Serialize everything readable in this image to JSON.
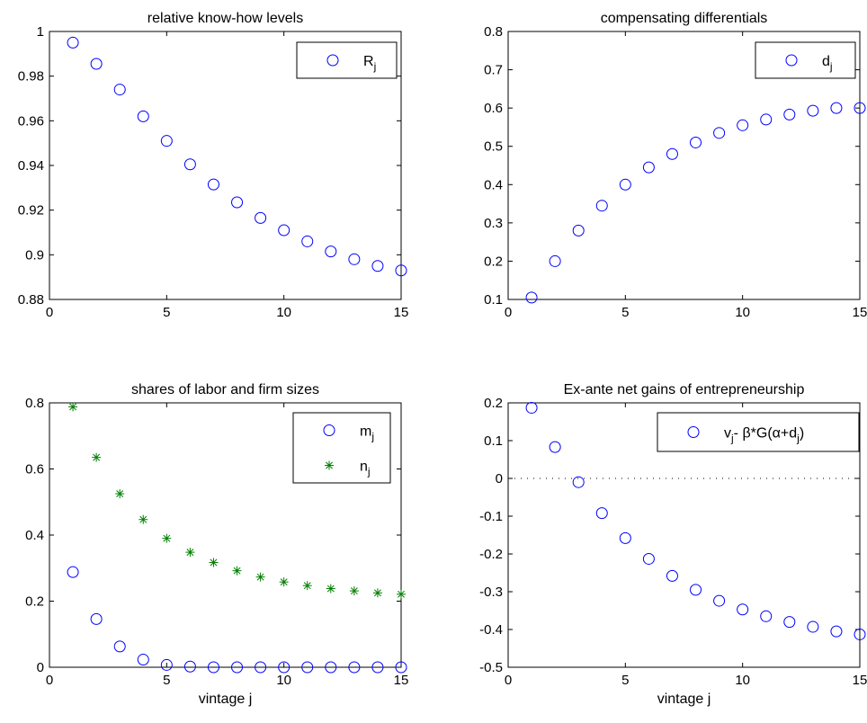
{
  "chart_data": [
    {
      "type": "scatter",
      "title": "relative know-how levels",
      "xlabel": "",
      "ylabel": "",
      "xlim": [
        0,
        15
      ],
      "ylim": [
        0.88,
        1.0
      ],
      "xticks": [
        0,
        5,
        10,
        15
      ],
      "xtick_labels": [
        "0",
        "5",
        "10",
        "15"
      ],
      "yticks": [
        0.88,
        0.9,
        0.92,
        0.94,
        0.96,
        0.98,
        1.0
      ],
      "ytick_labels": [
        "0.88",
        "0.9",
        "0.92",
        "0.94",
        "0.96",
        "0.98",
        "1"
      ],
      "grid": false,
      "legend_position": "top-right",
      "series": [
        {
          "name": "R_j",
          "label_main": "R",
          "label_sub": "j",
          "marker": "circle",
          "color": "#0000ff",
          "x": [
            1,
            2,
            3,
            4,
            5,
            6,
            7,
            8,
            9,
            10,
            11,
            12,
            13,
            14,
            15
          ],
          "y": [
            0.995,
            0.9855,
            0.974,
            0.962,
            0.951,
            0.9405,
            0.9315,
            0.9235,
            0.9165,
            0.911,
            0.906,
            0.9015,
            0.898,
            0.895,
            0.893
          ]
        }
      ]
    },
    {
      "type": "scatter",
      "title": "compensating differentials",
      "xlabel": "",
      "ylabel": "",
      "xlim": [
        0,
        15
      ],
      "ylim": [
        0.1,
        0.8
      ],
      "xticks": [
        0,
        5,
        10,
        15
      ],
      "xtick_labels": [
        "0",
        "5",
        "10",
        "15"
      ],
      "yticks": [
        0.1,
        0.2,
        0.3,
        0.4,
        0.5,
        0.6,
        0.7,
        0.8
      ],
      "ytick_labels": [
        "0.1",
        "0.2",
        "0.3",
        "0.4",
        "0.5",
        "0.6",
        "0.7",
        "0.8"
      ],
      "grid": false,
      "legend_position": "top-right",
      "series": [
        {
          "name": "d_j",
          "label_main": "d",
          "label_sub": "j",
          "marker": "circle",
          "color": "#0000ff",
          "x": [
            1,
            2,
            3,
            4,
            5,
            6,
            7,
            8,
            9,
            10,
            11,
            12,
            13,
            14,
            15
          ],
          "y": [
            0.105,
            0.2,
            0.28,
            0.345,
            0.4,
            0.445,
            0.48,
            0.51,
            0.535,
            0.555,
            0.57,
            0.583,
            0.593,
            0.6,
            0.6
          ]
        }
      ]
    },
    {
      "type": "scatter",
      "title": "shares of labor and firm sizes",
      "xlabel": "vintage j",
      "ylabel": "",
      "xlim": [
        0,
        15
      ],
      "ylim": [
        0,
        0.8
      ],
      "xticks": [
        0,
        5,
        10,
        15
      ],
      "xtick_labels": [
        "0",
        "5",
        "10",
        "15"
      ],
      "yticks": [
        0,
        0.2,
        0.4,
        0.6,
        0.8
      ],
      "ytick_labels": [
        "0",
        "0.2",
        "0.4",
        "0.6",
        "0.8"
      ],
      "grid": false,
      "legend_position": "top-right",
      "series": [
        {
          "name": "m_j",
          "label_main": "m",
          "label_sub": "j",
          "marker": "circle",
          "color": "#0000ff",
          "x": [
            1,
            2,
            3,
            4,
            5,
            6,
            7,
            8,
            9,
            10,
            11,
            12,
            13,
            14,
            15
          ],
          "y": [
            0.288,
            0.146,
            0.063,
            0.023,
            0.007,
            0.002,
            0.0,
            0.0,
            0.0,
            0.0,
            0.0,
            0.0,
            0.0,
            0.0,
            0.0
          ]
        },
        {
          "name": "n_j",
          "label_main": "n",
          "label_sub": "j",
          "marker": "asterisk",
          "color": "#007f00",
          "x": [
            1,
            2,
            3,
            4,
            5,
            6,
            7,
            8,
            9,
            10,
            11,
            12,
            13,
            14,
            15
          ],
          "y": [
            0.788,
            0.635,
            0.525,
            0.447,
            0.39,
            0.348,
            0.317,
            0.292,
            0.273,
            0.258,
            0.247,
            0.238,
            0.231,
            0.225,
            0.221
          ]
        }
      ]
    },
    {
      "type": "scatter",
      "title": "Ex-ante net gains of entrepreneurship",
      "xlabel": "vintage j",
      "ylabel": "",
      "xlim": [
        0,
        15
      ],
      "ylim": [
        -0.5,
        0.2
      ],
      "xticks": [
        0,
        5,
        10,
        15
      ],
      "xtick_labels": [
        "0",
        "5",
        "10",
        "15"
      ],
      "yticks": [
        -0.5,
        -0.4,
        -0.3,
        -0.2,
        -0.1,
        0,
        0.1,
        0.2
      ],
      "ytick_labels": [
        "-0.5",
        "-0.4",
        "-0.3",
        "-0.2",
        "-0.1",
        "0",
        "0.1",
        "0.2"
      ],
      "grid": false,
      "legend_position": "top-right",
      "reference_line_y": 0,
      "series": [
        {
          "name": "v_j- β*G(α+d_j)",
          "label_parts": [
            {
              "text": "v",
              "sub": false
            },
            {
              "text": "j",
              "sub": true
            },
            {
              "text": "- β*G(α+d",
              "sub": false
            },
            {
              "text": "j",
              "sub": true
            },
            {
              "text": ")",
              "sub": false
            }
          ],
          "marker": "circle",
          "color": "#0000ff",
          "x": [
            1,
            2,
            3,
            4,
            5,
            6,
            7,
            8,
            9,
            10,
            11,
            12,
            13,
            14,
            15
          ],
          "y": [
            0.187,
            0.083,
            -0.01,
            -0.092,
            -0.158,
            -0.213,
            -0.258,
            -0.295,
            -0.324,
            -0.347,
            -0.365,
            -0.38,
            -0.393,
            -0.405,
            -0.413
          ]
        }
      ]
    }
  ]
}
